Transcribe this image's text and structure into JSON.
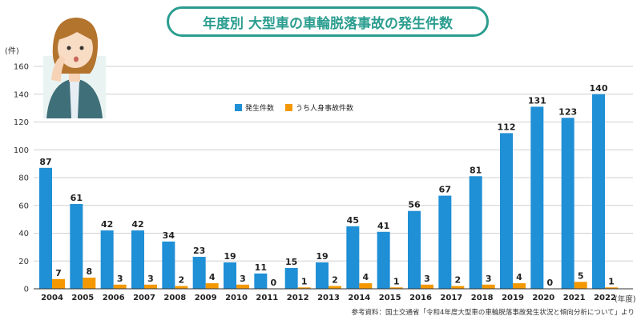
{
  "title": "年度別 大型車の車輪脱落事故の発生件数",
  "source": "参考資料：国土交通省「令和4年度大型車の車輪脱落事故発生状況と傾向分析について」より",
  "colors": {
    "accent": "#2a9d8f",
    "series1": "#1f8fd6",
    "series2": "#f39800"
  },
  "chart_data": {
    "type": "bar",
    "categories": [
      "2004",
      "2005",
      "2006",
      "2007",
      "2008",
      "2009",
      "2010",
      "2011",
      "2012",
      "2013",
      "2014",
      "2015",
      "2016",
      "2017",
      "2018",
      "2019",
      "2020",
      "2021",
      "2022"
    ],
    "series": [
      {
        "name": "発生件数",
        "values": [
          87,
          61,
          42,
          42,
          34,
          23,
          19,
          11,
          15,
          19,
          45,
          41,
          56,
          67,
          81,
          112,
          131,
          123,
          140
        ]
      },
      {
        "name": "うち人身事故件数",
        "values": [
          7,
          8,
          3,
          3,
          2,
          4,
          3,
          0,
          1,
          2,
          4,
          1,
          3,
          2,
          3,
          4,
          0,
          5,
          1
        ]
      }
    ],
    "y_unit": "(件)",
    "x_unit": "(年度)",
    "ylim": [
      0,
      160
    ],
    "yticks": [
      0,
      20,
      40,
      60,
      80,
      100,
      120,
      140,
      160
    ],
    "grid": true,
    "legend": "top-center"
  }
}
